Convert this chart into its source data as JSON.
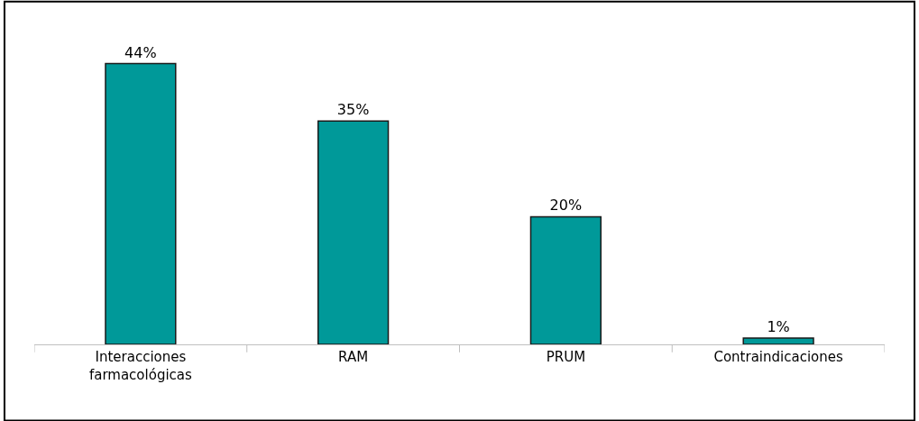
{
  "chart_data": {
    "type": "bar",
    "categories": [
      "Interacciones farmacológicas",
      "RAM",
      "PRUM",
      "Contraindicaciones"
    ],
    "values": [
      44,
      35,
      20,
      1
    ],
    "color": "#009999",
    "value_labels": [
      "44%",
      "35%",
      "20%",
      "1%"
    ],
    "legend": false,
    "tick_labels": "x"
  }
}
